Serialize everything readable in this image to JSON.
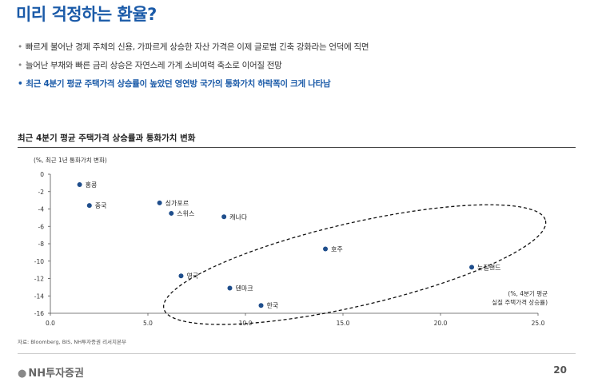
{
  "page": {
    "title": "미리 걱정하는 환율?",
    "bullets": [
      "빠르게 불어난 경제 주체의 신용, 가파르게 상승한 자산 가격은 이제 글로벌 긴축 강화라는 언덕에 직면",
      "늘어난 부채와 빠른 금리 상승은 자연스레 가계 소비여력 축소로 이어질 전망",
      "최근 4분기 평균 주택가격 상승률이 높았던 영연방 국가의 통화가치 하락폭이 크게 나타남"
    ],
    "chart_title": "최근 4분기 평균 주택가격 상승률과 통화가치 변화",
    "source": "자료: Bloomberg, BIS, NH투자증권 리서치본부",
    "logo": "NH투자증권",
    "page_number": "20"
  },
  "colors": {
    "title": "#1a5aa8",
    "marker": "#1f4e8c",
    "highlight_text": "#1a5aa8"
  },
  "chart_data": {
    "type": "scatter",
    "title": "최근 4분기 평균 주택가격 상승률과 통화가치 변화",
    "ylabel": "(%, 최근 1년 통화가치 변화)",
    "xlabel": [
      "(%, 4분기 평균",
      "실질 주택가격 상승률)"
    ],
    "xlim": [
      0,
      25
    ],
    "ylim": [
      -16,
      0
    ],
    "xticks": [
      "0.0",
      "5.0",
      "10.0",
      "15.0",
      "20.0",
      "25.0"
    ],
    "yticks": [
      "0",
      "-2",
      "-4",
      "-6",
      "-8",
      "-10",
      "-12",
      "-14",
      "-16"
    ],
    "grid": false,
    "annotation": "dashed ellipse grouping Commonwealth countries",
    "points": [
      {
        "label": "홍콩",
        "x": 1.5,
        "y": -1.2
      },
      {
        "label": "중국",
        "x": 2.0,
        "y": -3.6
      },
      {
        "label": "싱가포르",
        "x": 5.6,
        "y": -3.3
      },
      {
        "label": "스위스",
        "x": 6.2,
        "y": -4.5
      },
      {
        "label": "캐나다",
        "x": 8.9,
        "y": -4.9
      },
      {
        "label": "호주",
        "x": 14.1,
        "y": -8.6
      },
      {
        "label": "뉴질랜드",
        "x": 21.6,
        "y": -10.7
      },
      {
        "label": "영국",
        "x": 6.7,
        "y": -11.7
      },
      {
        "label": "덴마크",
        "x": 9.2,
        "y": -13.1
      },
      {
        "label": "한국",
        "x": 10.8,
        "y": -15.1
      }
    ]
  }
}
